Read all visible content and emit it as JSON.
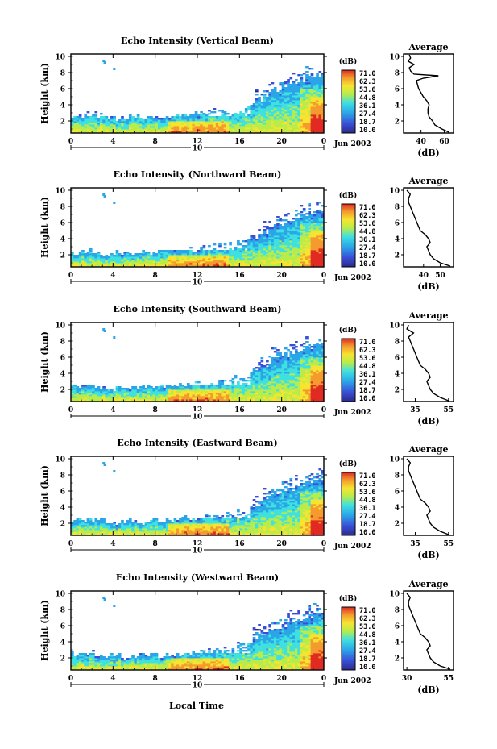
{
  "figure": {
    "xlabel": "Local Time",
    "date_label": "Jun 2002",
    "day_label": "10"
  },
  "chart_data": [
    {
      "type": "heatmap",
      "title": "Echo Intensity (Vertical Beam)",
      "ylabel": "Height (km)",
      "x_ticks": [
        "0",
        "4",
        "8",
        "12",
        "16",
        "20",
        "0"
      ],
      "y_ticks": [
        "2",
        "4",
        "6",
        "8",
        "10"
      ],
      "xlim": [
        0,
        24
      ],
      "ylim": [
        0.5,
        10.3
      ],
      "colorbar": {
        "unit": "(dB)",
        "labels": [
          "71.0",
          "62.3",
          "53.6",
          "44.8",
          "36.1",
          "27.4",
          "18.7",
          "10.0"
        ]
      },
      "echo_top_km": [
        [
          0,
          2.6
        ],
        [
          2,
          2.8
        ],
        [
          4,
          2.3
        ],
        [
          6,
          2.4
        ],
        [
          8,
          2.5
        ],
        [
          10,
          2.6
        ],
        [
          12,
          3.0
        ],
        [
          14,
          3.2
        ],
        [
          16,
          3.6
        ],
        [
          18,
          4.6
        ],
        [
          19,
          5.6
        ],
        [
          20,
          6.0
        ],
        [
          21,
          6.5
        ],
        [
          22,
          6.9
        ],
        [
          23,
          7.4
        ],
        [
          24,
          7.6
        ]
      ],
      "profile": {
        "title": "Average",
        "xlabel": "(dB)",
        "x_ticks": [
          "40",
          "60"
        ],
        "xlim": [
          25,
          68
        ],
        "y_ticks": [
          "2",
          "4",
          "6",
          "8",
          "10"
        ],
        "ylim": [
          0.5,
          10.3
        ],
        "height_km": [
          0.6,
          1.0,
          1.5,
          2.0,
          2.5,
          3.0,
          3.5,
          4.0,
          4.5,
          5.0,
          5.5,
          6.0,
          6.5,
          7.0,
          7.3,
          7.6,
          7.8,
          8.2,
          8.6,
          9.0,
          9.4,
          9.8,
          10.2
        ],
        "db": [
          64,
          58,
          52,
          50,
          47,
          46,
          46,
          47,
          45,
          42,
          40,
          38,
          37,
          36,
          42,
          55,
          34,
          31,
          30,
          34,
          29,
          31,
          30
        ]
      }
    },
    {
      "type": "heatmap",
      "title": "Echo Intensity (Northward Beam)",
      "ylabel": "Height (km)",
      "x_ticks": [
        "0",
        "4",
        "8",
        "12",
        "16",
        "20",
        "0"
      ],
      "y_ticks": [
        "2",
        "4",
        "6",
        "8",
        "10"
      ],
      "xlim": [
        0,
        24
      ],
      "ylim": [
        0.5,
        10.3
      ],
      "colorbar": {
        "unit": "(dB)",
        "labels": [
          "71.0",
          "62.3",
          "53.6",
          "44.8",
          "36.1",
          "27.4",
          "18.7",
          "10.0"
        ]
      },
      "echo_top_km": [
        [
          0,
          2.2
        ],
        [
          2,
          2.4
        ],
        [
          4,
          2.0
        ],
        [
          6,
          2.1
        ],
        [
          8,
          2.2
        ],
        [
          10,
          2.4
        ],
        [
          12,
          2.7
        ],
        [
          14,
          3.0
        ],
        [
          16,
          3.4
        ],
        [
          18,
          4.3
        ],
        [
          19,
          5.2
        ],
        [
          20,
          5.6
        ],
        [
          21,
          6.0
        ],
        [
          22,
          6.6
        ],
        [
          23,
          7.0
        ],
        [
          24,
          7.3
        ]
      ],
      "profile": {
        "title": "Average",
        "xlabel": "(dB)",
        "x_ticks": [
          "40",
          "50"
        ],
        "xlim": [
          28,
          58
        ],
        "y_ticks": [
          "2",
          "4",
          "6",
          "8",
          "10"
        ],
        "ylim": [
          0.5,
          10.3
        ],
        "height_km": [
          0.6,
          1.0,
          1.5,
          2.0,
          2.5,
          3.0,
          3.5,
          4.0,
          4.5,
          5.0,
          5.5,
          6.0,
          6.5,
          7.0,
          7.5,
          8.0,
          8.5,
          9.0,
          9.5,
          10.0
        ],
        "db": [
          56,
          50,
          46,
          44,
          43,
          42,
          44,
          43,
          41,
          38,
          37,
          36,
          35,
          34,
          33,
          32,
          31,
          31,
          32,
          30
        ]
      }
    },
    {
      "type": "heatmap",
      "title": "Echo Intensity (Southward Beam)",
      "ylabel": "Height (km)",
      "x_ticks": [
        "0",
        "4",
        "8",
        "12",
        "16",
        "20",
        "0"
      ],
      "y_ticks": [
        "2",
        "4",
        "6",
        "8",
        "10"
      ],
      "xlim": [
        0,
        24
      ],
      "ylim": [
        0.5,
        10.3
      ],
      "colorbar": {
        "unit": "(dB)",
        "labels": [
          "71.0",
          "62.3",
          "53.6",
          "44.8",
          "36.1",
          "27.4",
          "18.7",
          "10.0"
        ]
      },
      "echo_top_km": [
        [
          0,
          2.3
        ],
        [
          2,
          2.5
        ],
        [
          4,
          2.1
        ],
        [
          6,
          2.2
        ],
        [
          8,
          2.3
        ],
        [
          10,
          2.5
        ],
        [
          12,
          2.8
        ],
        [
          14,
          3.1
        ],
        [
          16,
          3.5
        ],
        [
          18,
          4.5
        ],
        [
          19,
          5.4
        ],
        [
          20,
          5.9
        ],
        [
          21,
          6.3
        ],
        [
          22,
          6.7
        ],
        [
          23,
          7.2
        ],
        [
          24,
          7.4
        ]
      ],
      "profile": {
        "title": "Average",
        "xlabel": "(dB)",
        "x_ticks": [
          "35",
          "55"
        ],
        "xlim": [
          28,
          58
        ],
        "y_ticks": [
          "2",
          "4",
          "6",
          "8",
          "10"
        ],
        "ylim": [
          0.5,
          10.3
        ],
        "height_km": [
          0.6,
          1.0,
          1.5,
          2.0,
          2.5,
          3.0,
          3.5,
          4.0,
          4.5,
          5.0,
          5.5,
          6.0,
          6.5,
          7.0,
          7.5,
          8.0,
          8.5,
          9.0,
          9.5,
          10.0
        ],
        "db": [
          55,
          50,
          46,
          44,
          43,
          42,
          44,
          43,
          41,
          38,
          37,
          36,
          35,
          34,
          33,
          32,
          31,
          34,
          30,
          31
        ]
      }
    },
    {
      "type": "heatmap",
      "title": "Echo Intensity (Eastward Beam)",
      "ylabel": "Height (km)",
      "x_ticks": [
        "0",
        "4",
        "8",
        "12",
        "16",
        "20",
        "0"
      ],
      "y_ticks": [
        "2",
        "4",
        "6",
        "8",
        "10"
      ],
      "xlim": [
        0,
        24
      ],
      "ylim": [
        0.5,
        10.3
      ],
      "colorbar": {
        "unit": "(dB)",
        "labels": [
          "71.0",
          "62.3",
          "53.6",
          "44.8",
          "36.1",
          "27.4",
          "18.7",
          "10.0"
        ]
      },
      "echo_top_km": [
        [
          0,
          2.2
        ],
        [
          2,
          2.4
        ],
        [
          4,
          2.0
        ],
        [
          6,
          2.1
        ],
        [
          8,
          2.2
        ],
        [
          10,
          2.4
        ],
        [
          12,
          2.7
        ],
        [
          14,
          3.0
        ],
        [
          16,
          3.4
        ],
        [
          18,
          4.4
        ],
        [
          19,
          5.3
        ],
        [
          20,
          5.8
        ],
        [
          21,
          6.2
        ],
        [
          22,
          6.6
        ],
        [
          23,
          7.1
        ],
        [
          24,
          7.3
        ]
      ],
      "profile": {
        "title": "Average",
        "xlabel": "(dB)",
        "x_ticks": [
          "35",
          "55"
        ],
        "xlim": [
          28,
          58
        ],
        "y_ticks": [
          "2",
          "4",
          "6",
          "8",
          "10"
        ],
        "ylim": [
          0.5,
          10.3
        ],
        "height_km": [
          0.6,
          1.0,
          1.5,
          2.0,
          2.5,
          3.0,
          3.5,
          4.0,
          4.5,
          5.0,
          5.5,
          6.0,
          6.5,
          7.0,
          7.5,
          8.0,
          8.5,
          9.0,
          9.5,
          10.0
        ],
        "db": [
          55,
          50,
          46,
          44,
          43,
          42,
          44,
          43,
          41,
          38,
          37,
          36,
          35,
          34,
          33,
          32,
          31,
          31,
          32,
          30
        ]
      }
    },
    {
      "type": "heatmap",
      "title": "Echo Intensity (Westward Beam)",
      "ylabel": "Height (km)",
      "x_ticks": [
        "0",
        "4",
        "8",
        "12",
        "16",
        "20",
        "0"
      ],
      "y_ticks": [
        "2",
        "4",
        "6",
        "8",
        "10"
      ],
      "xlim": [
        0,
        24
      ],
      "ylim": [
        0.5,
        10.3
      ],
      "colorbar": {
        "unit": "(dB)",
        "labels": [
          "71.0",
          "62.3",
          "53.6",
          "44.8",
          "36.1",
          "27.4",
          "18.7",
          "10.0"
        ]
      },
      "echo_top_km": [
        [
          0,
          2.3
        ],
        [
          2,
          2.5
        ],
        [
          4,
          2.1
        ],
        [
          6,
          2.2
        ],
        [
          8,
          2.3
        ],
        [
          10,
          2.5
        ],
        [
          12,
          2.8
        ],
        [
          14,
          3.1
        ],
        [
          16,
          3.5
        ],
        [
          18,
          4.5
        ],
        [
          19,
          5.4
        ],
        [
          20,
          5.9
        ],
        [
          21,
          6.4
        ],
        [
          22,
          6.8
        ],
        [
          23,
          7.2
        ],
        [
          24,
          7.5
        ]
      ],
      "profile": {
        "title": "Average",
        "xlabel": "(dB)",
        "x_ticks": [
          "30",
          "55"
        ],
        "xlim": [
          28,
          58
        ],
        "y_ticks": [
          "2",
          "4",
          "6",
          "8",
          "10"
        ],
        "ylim": [
          0.5,
          10.3
        ],
        "height_km": [
          0.6,
          1.0,
          1.5,
          2.0,
          2.5,
          3.0,
          3.5,
          4.0,
          4.5,
          5.0,
          5.5,
          6.0,
          6.5,
          7.0,
          7.5,
          8.0,
          8.5,
          9.0,
          9.5,
          10.0
        ],
        "db": [
          56,
          50,
          46,
          44,
          43,
          42,
          44,
          43,
          41,
          38,
          37,
          36,
          35,
          34,
          33,
          32,
          31,
          31,
          32,
          30
        ]
      }
    }
  ]
}
